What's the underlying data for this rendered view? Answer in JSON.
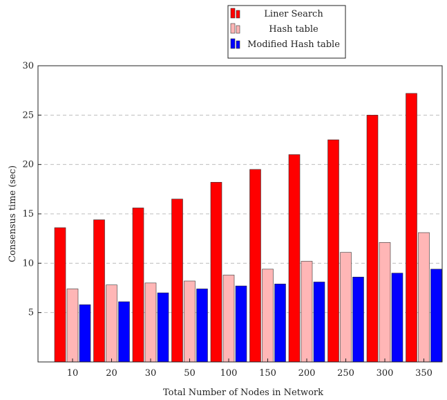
{
  "chart_data": {
    "type": "bar",
    "xlabel": "Total Number of Nodes in Network",
    "ylabel": "Consensus time (sec)",
    "ylim": [
      0,
      30
    ],
    "yticks": [
      5,
      10,
      15,
      20,
      25,
      30
    ],
    "categories": [
      "10",
      "20",
      "30",
      "50",
      "100",
      "150",
      "200",
      "250",
      "300",
      "350"
    ],
    "grid": "horizontal dashed",
    "legend_position": "top-right, above plot",
    "series": [
      {
        "name": "Liner Search",
        "color": "#ff0000",
        "values": [
          13.6,
          14.4,
          15.6,
          16.5,
          18.2,
          19.5,
          21.0,
          22.5,
          25.0,
          27.2
        ]
      },
      {
        "name": "Hash table",
        "color": "#ffb6b6",
        "values": [
          7.4,
          7.8,
          8.0,
          8.2,
          8.8,
          9.4,
          10.2,
          11.1,
          12.1,
          13.1
        ]
      },
      {
        "name": "Modified Hash table",
        "color": "#0000ff",
        "values": [
          5.8,
          6.1,
          7.0,
          7.4,
          7.7,
          7.9,
          8.1,
          8.6,
          9.0,
          9.4
        ]
      }
    ]
  }
}
